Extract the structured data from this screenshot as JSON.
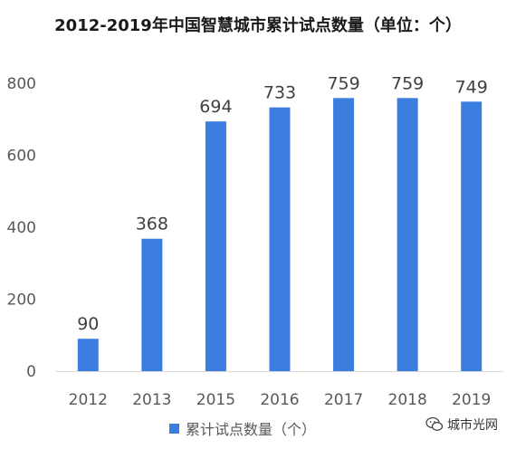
{
  "chart_data": {
    "type": "bar",
    "title": "2012-2019年中国智慧城市累计试点数量（单位：个）",
    "categories": [
      "2012",
      "2013",
      "2015",
      "2016",
      "2017",
      "2018",
      "2019"
    ],
    "series": [
      {
        "name": "累计试点数量（个）",
        "values": [
          90,
          368,
          694,
          733,
          759,
          759,
          749
        ]
      }
    ],
    "ylim": [
      0,
      800
    ],
    "yticks": [
      0,
      200,
      400,
      600,
      800
    ],
    "grid": false,
    "legend_position": "bottom",
    "bar_color": "#3c7ee0"
  },
  "watermark": {
    "text": "城市光网",
    "icon": "wechat-icon"
  }
}
